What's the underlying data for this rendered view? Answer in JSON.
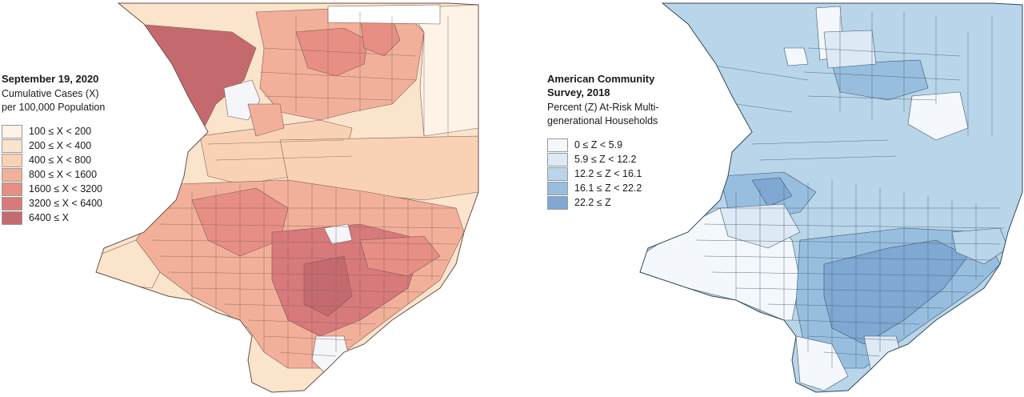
{
  "left_panel": {
    "title": "September 19, 2020",
    "subtitle_lines": [
      "Cumulative Cases (X)",
      "per 100,000 Population"
    ],
    "legend": [
      {
        "label": "100 ≤ X < 200",
        "color": "#fdf3e6"
      },
      {
        "label": "200 ≤ X < 400",
        "color": "#fbe4cc"
      },
      {
        "label": "400 ≤ X < 800",
        "color": "#f9d2b5"
      },
      {
        "label": "800 ≤ X < 1600",
        "color": "#f2b09a"
      },
      {
        "label": "1600 ≤ X < 3200",
        "color": "#e78f84"
      },
      {
        "label": "3200 ≤ X < 6400",
        "color": "#d8797b"
      },
      {
        "label": "6400 ≤ X",
        "color": "#c46a6e"
      }
    ]
  },
  "right_panel": {
    "title_lines": [
      "American Community",
      "Survey, 2018"
    ],
    "subtitle_lines": [
      "Percent (Z) At-Risk Multi-",
      "generational Households"
    ],
    "legend": [
      {
        "label": "0 ≤ Z < 5.9",
        "color": "#f4f8fc"
      },
      {
        "label": "5.9 ≤ Z < 12.2",
        "color": "#dde9f4"
      },
      {
        "label": "12.2 ≤ Z < 16.1",
        "color": "#b8d5ea"
      },
      {
        "label": "16.1 ≤ Z < 22.2",
        "color": "#98bedf"
      },
      {
        "label": "22.2 ≤ Z",
        "color": "#7fa8d2"
      }
    ]
  }
}
